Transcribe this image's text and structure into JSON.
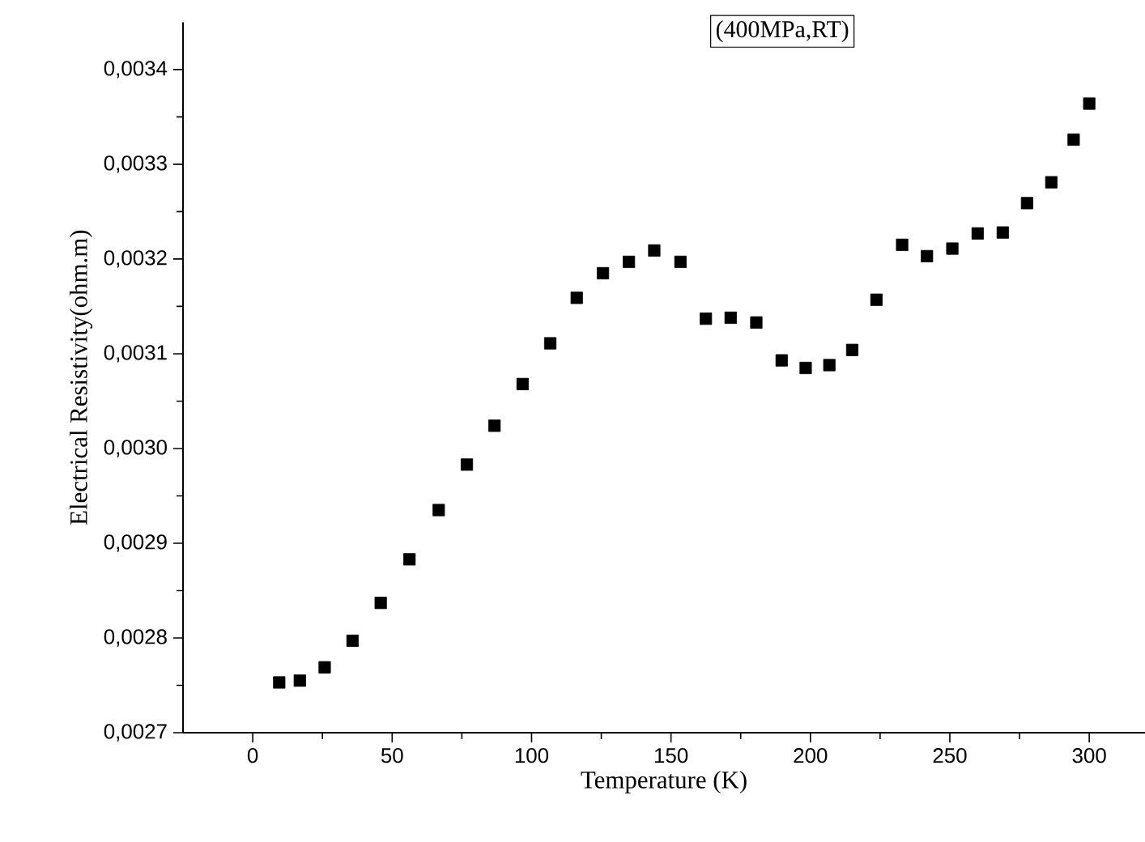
{
  "chart_data": {
    "type": "scatter",
    "xlabel": "Temperature (K)",
    "ylabel": "Electrical Resistivity(ohm.m)",
    "xlim": [
      -25,
      320
    ],
    "xticks": [
      0,
      50,
      100,
      150,
      200,
      250,
      300
    ],
    "ylim": [
      0.0027,
      0.00345
    ],
    "yticks": [
      {
        "value": 0.0027,
        "label": "0,0027"
      },
      {
        "value": 0.0028,
        "label": "0,0028"
      },
      {
        "value": 0.0029,
        "label": "0,0029"
      },
      {
        "value": 0.003,
        "label": "0,0030"
      },
      {
        "value": 0.0031,
        "label": "0,0031"
      },
      {
        "value": 0.0032,
        "label": "0,0032"
      },
      {
        "value": 0.0033,
        "label": "0,0033"
      },
      {
        "value": 0.0034,
        "label": "0,0034"
      }
    ],
    "marker": "square",
    "grid": false,
    "series": [
      {
        "name": "(400MPa,RT)",
        "color": "#000000",
        "x": [
          9.5,
          16.9,
          25.8,
          35.8,
          45.9,
          56.2,
          66.7,
          76.8,
          86.7,
          96.8,
          106.7,
          116.2,
          125.6,
          134.9,
          144,
          153.4,
          162.5,
          171.4,
          180.6,
          189.7,
          198.3,
          206.8,
          215,
          223.7,
          232.9,
          241.8,
          250.9,
          260,
          269,
          277.7,
          286.4,
          294.4,
          300
        ],
        "values": [
          0.002753,
          0.002755,
          0.002769,
          0.002797,
          0.002837,
          0.002883,
          0.002935,
          0.002983,
          0.003024,
          0.003068,
          0.003111,
          0.003159,
          0.003185,
          0.003197,
          0.003209,
          0.003197,
          0.003137,
          0.003138,
          0.003133,
          0.003093,
          0.003085,
          0.003088,
          0.003104,
          0.003157,
          0.003215,
          0.003203,
          0.003211,
          0.003227,
          0.003228,
          0.003259,
          0.003281,
          0.003326,
          0.003364
        ]
      }
    ]
  }
}
